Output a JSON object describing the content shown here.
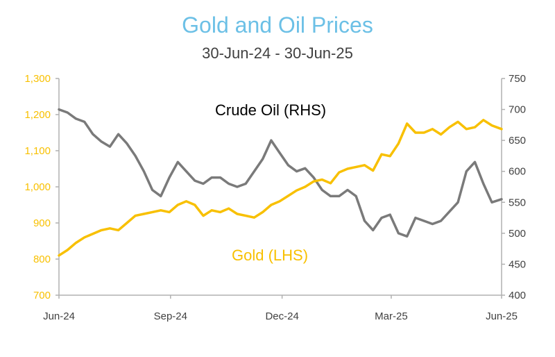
{
  "chart_data": {
    "type": "line",
    "title": "Gold and Oil Prices",
    "subtitle": "30-Jun-24 - 30-Jun-25",
    "colors": {
      "title": "#6cc0e6",
      "gold": "#f8c000",
      "oil": "#7a7a7a",
      "axis": "#b0b0b0",
      "text": "#404040"
    },
    "x_ticks": [
      "Jun-24",
      "Sep-24",
      "Dec-24",
      "Mar-25",
      "Jun-25"
    ],
    "y_left": {
      "min": 700,
      "max": 1300,
      "step": 100,
      "tick_labels": [
        "700",
        "800",
        "900",
        "1,000",
        "1,100",
        "1,200",
        "1,300"
      ]
    },
    "y_right": {
      "min": 400,
      "max": 750,
      "step": 50,
      "tick_labels": [
        "400",
        "450",
        "500",
        "550",
        "600",
        "650",
        "700",
        "750"
      ]
    },
    "annotations": {
      "oil": "Crude Oil (RHS)",
      "gold": "Gold (LHS)"
    },
    "grid": false,
    "legend": "none",
    "series": [
      {
        "key": "gold",
        "axis": "left",
        "x": [
          "2024-06-30",
          "2024-07-07",
          "2024-07-14",
          "2024-07-21",
          "2024-07-28",
          "2024-08-04",
          "2024-08-11",
          "2024-08-18",
          "2024-08-25",
          "2024-09-01",
          "2024-09-08",
          "2024-09-15",
          "2024-09-22",
          "2024-09-29",
          "2024-10-06",
          "2024-10-13",
          "2024-10-20",
          "2024-10-27",
          "2024-11-03",
          "2024-11-10",
          "2024-11-17",
          "2024-11-24",
          "2024-12-01",
          "2024-12-08",
          "2024-12-15",
          "2024-12-22",
          "2024-12-29",
          "2025-01-05",
          "2025-01-12",
          "2025-01-19",
          "2025-01-26",
          "2025-02-02",
          "2025-02-09",
          "2025-02-16",
          "2025-02-23",
          "2025-03-02",
          "2025-03-09",
          "2025-03-16",
          "2025-03-23",
          "2025-03-30",
          "2025-04-06",
          "2025-04-13",
          "2025-04-20",
          "2025-04-27",
          "2025-05-04",
          "2025-05-11",
          "2025-05-18",
          "2025-05-25",
          "2025-06-01",
          "2025-06-08",
          "2025-06-15",
          "2025-06-22",
          "2025-06-30"
        ],
        "values": [
          810,
          825,
          845,
          860,
          870,
          880,
          885,
          880,
          900,
          920,
          925,
          930,
          935,
          930,
          950,
          960,
          950,
          920,
          935,
          930,
          940,
          925,
          920,
          915,
          930,
          950,
          960,
          975,
          990,
          1000,
          1015,
          1020,
          1010,
          1040,
          1050,
          1055,
          1060,
          1045,
          1090,
          1085,
          1120,
          1175,
          1150,
          1150,
          1160,
          1145,
          1165,
          1180,
          1160,
          1165,
          1185,
          1170,
          1160
        ]
      },
      {
        "key": "oil",
        "axis": "right",
        "x": [
          "2024-06-30",
          "2024-07-07",
          "2024-07-14",
          "2024-07-21",
          "2024-07-28",
          "2024-08-04",
          "2024-08-11",
          "2024-08-18",
          "2024-08-25",
          "2024-09-01",
          "2024-09-08",
          "2024-09-15",
          "2024-09-22",
          "2024-09-29",
          "2024-10-06",
          "2024-10-13",
          "2024-10-20",
          "2024-10-27",
          "2024-11-03",
          "2024-11-10",
          "2024-11-17",
          "2024-11-24",
          "2024-12-01",
          "2024-12-08",
          "2024-12-15",
          "2024-12-22",
          "2024-12-29",
          "2025-01-05",
          "2025-01-12",
          "2025-01-19",
          "2025-01-26",
          "2025-02-02",
          "2025-02-09",
          "2025-02-16",
          "2025-02-23",
          "2025-03-02",
          "2025-03-09",
          "2025-03-16",
          "2025-03-23",
          "2025-03-30",
          "2025-04-06",
          "2025-04-13",
          "2025-04-20",
          "2025-04-27",
          "2025-05-04",
          "2025-05-11",
          "2025-05-18",
          "2025-05-25",
          "2025-06-01",
          "2025-06-08",
          "2025-06-15",
          "2025-06-22",
          "2025-06-30"
        ],
        "values": [
          700,
          695,
          685,
          680,
          660,
          648,
          640,
          660,
          645,
          625,
          600,
          570,
          560,
          590,
          615,
          600,
          585,
          580,
          590,
          590,
          580,
          575,
          580,
          600,
          620,
          650,
          630,
          610,
          600,
          605,
          590,
          570,
          560,
          560,
          570,
          560,
          520,
          505,
          525,
          530,
          500,
          495,
          525,
          520,
          515,
          520,
          535,
          550,
          600,
          615,
          580,
          550,
          555
        ]
      }
    ]
  }
}
